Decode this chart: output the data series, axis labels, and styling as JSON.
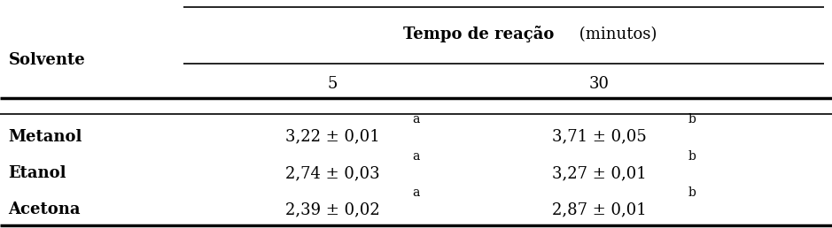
{
  "solvente_label": "Solvente",
  "header_bold": "Tempo de reação",
  "header_normal": " (minutos)",
  "col_headers": [
    "5",
    "30"
  ],
  "row_labels": [
    "Metanol",
    "Etanol",
    "Acetona"
  ],
  "col5_values": [
    "3,22 ± 0,01",
    "2,74 ± 0,03",
    "2,39 ± 0,02"
  ],
  "col30_values": [
    "3,71 ± 0,05",
    "3,27 ± 0,01",
    "2,87 ± 0,01"
  ],
  "col5_superscripts": [
    "a",
    "a",
    "a"
  ],
  "col30_superscripts": [
    "b",
    "b",
    "b"
  ],
  "bg_color": "#ffffff",
  "text_color": "#000000",
  "font_size_header": 13,
  "font_size_subheader": 13,
  "font_size_data": 13,
  "font_size_row_label": 13,
  "font_size_solvente": 13,
  "figsize": [
    9.39,
    2.58
  ],
  "dpi": 100
}
